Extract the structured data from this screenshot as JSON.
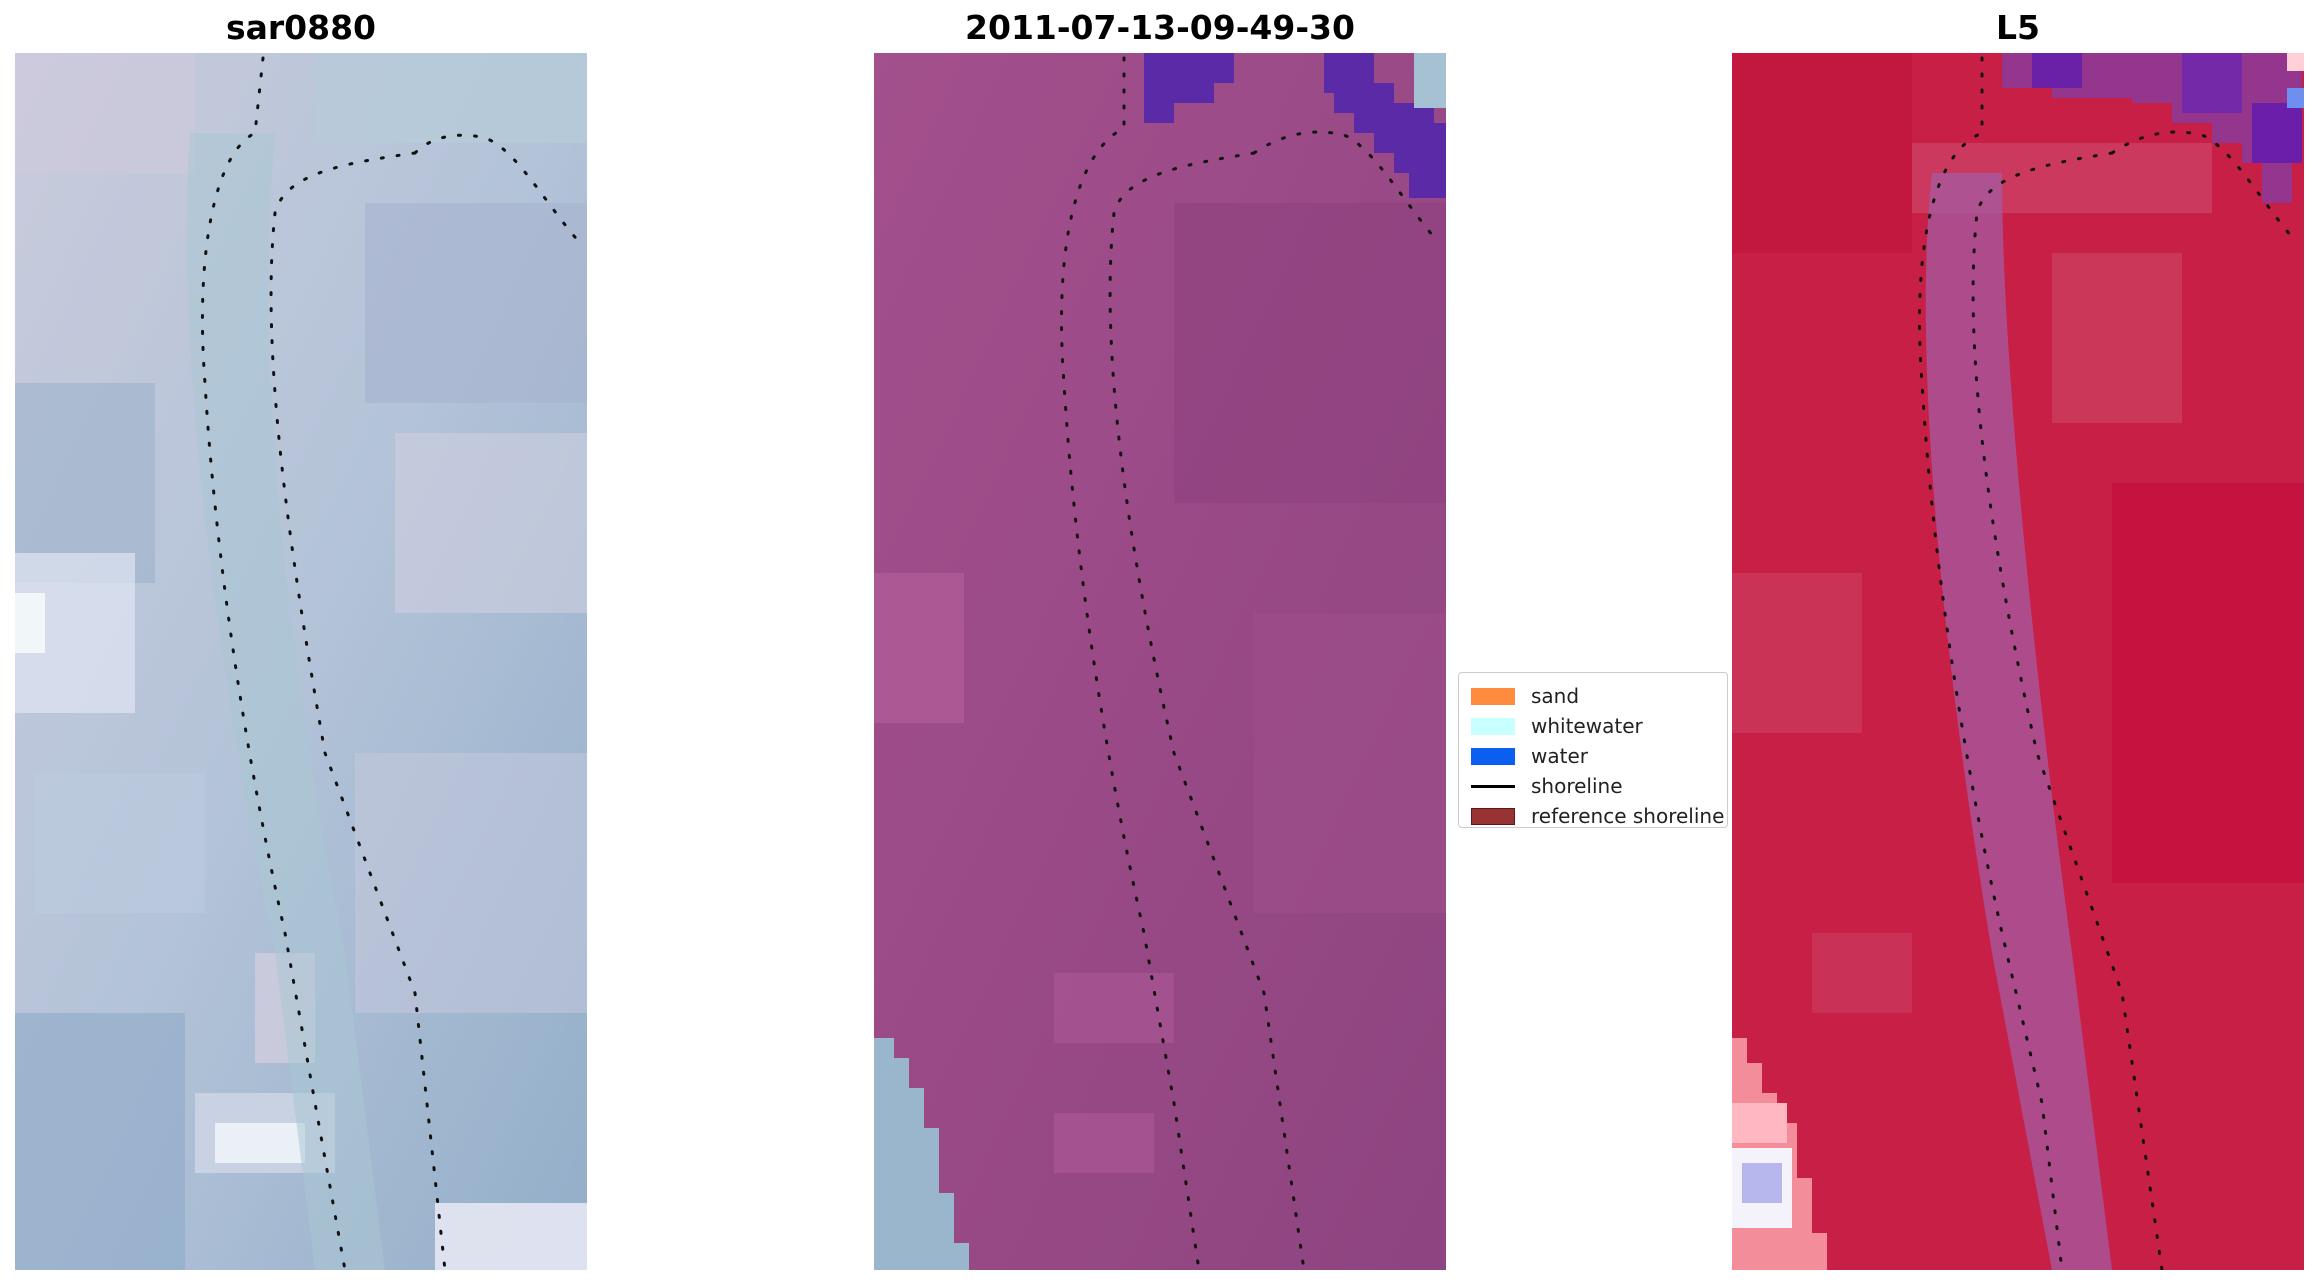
{
  "panels": [
    {
      "title": "sar0880",
      "kind": "rgb"
    },
    {
      "title": "2011-07-13-09-49-30",
      "kind": "classified"
    },
    {
      "title": "L5",
      "kind": "index"
    }
  ],
  "legend": {
    "items": [
      {
        "label": "sand",
        "color": "#ff8c3c",
        "type": "patch"
      },
      {
        "label": "whitewater",
        "color": "#c8ffff",
        "type": "patch"
      },
      {
        "label": "water",
        "color": "#0a5ff0",
        "type": "patch"
      },
      {
        "label": "shoreline",
        "color": "#000000",
        "type": "line"
      },
      {
        "label": "reference shoreline",
        "color": "#993333",
        "type": "patch"
      }
    ]
  },
  "colors": {
    "rgb_base": "#b4c2d6",
    "classified_base": "#9a4a86",
    "water_class": "#5b2aa6",
    "index_base": "#c81e44",
    "index_band": "#a55ba3",
    "shoreline_dots": "#111111"
  }
}
